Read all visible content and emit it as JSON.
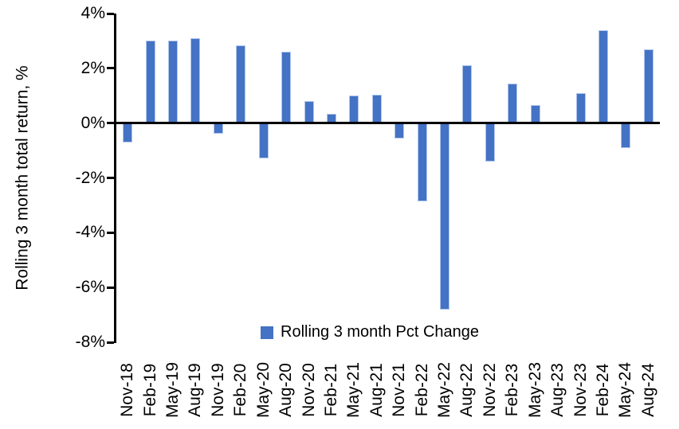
{
  "chart_data": {
    "type": "bar",
    "title": "",
    "xlabel": "",
    "ylabel": "Rolling 3 month total return, %",
    "legend": "Rolling 3 month Pct Change",
    "categories": [
      "Nov-18",
      "Feb-19",
      "May-19",
      "Aug-19",
      "Nov-19",
      "Feb-20",
      "May-20",
      "Aug-20",
      "Nov-20",
      "Feb-21",
      "May-21",
      "Aug-21",
      "Nov-21",
      "Feb-22",
      "May-22",
      "Aug-22",
      "Nov-22",
      "Feb-23",
      "May-23",
      "Aug-23",
      "Nov-23",
      "Feb-24",
      "May-24",
      "Aug-24"
    ],
    "values": [
      -0.7,
      3.0,
      3.0,
      3.1,
      -0.4,
      2.85,
      -1.3,
      2.6,
      0.8,
      0.35,
      1.0,
      1.05,
      -0.55,
      -2.85,
      -6.8,
      2.1,
      -1.4,
      1.45,
      0.65,
      0.0,
      1.1,
      3.4,
      -0.9,
      2.7
    ],
    "ytick_labels": [
      "4%",
      "2%",
      "0%",
      "-2%",
      "-4%",
      "-6%",
      "-8%"
    ],
    "ytick_values": [
      4,
      2,
      0,
      -2,
      -4,
      -6,
      -8
    ],
    "ylim": [
      -8,
      4
    ],
    "grid": "off",
    "legend_position": "bottom-center",
    "bar_color": "#4472C4",
    "bar_edge_color": "#aec6ec",
    "axis_color": "#000000",
    "text_color": "#000000",
    "background_color": "#ffffff"
  }
}
